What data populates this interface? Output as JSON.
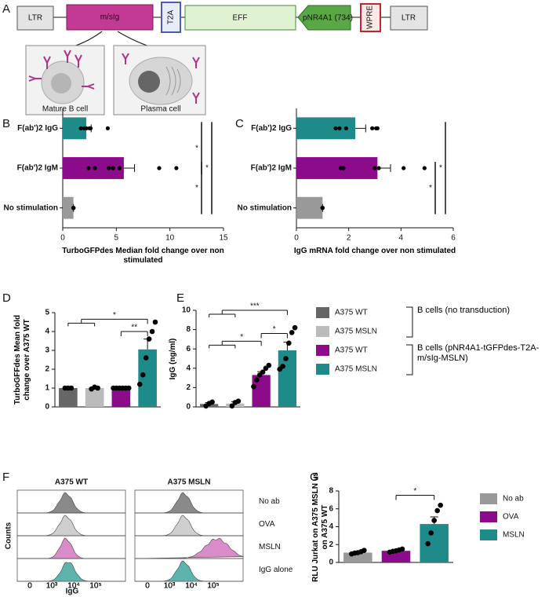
{
  "panels": [
    "A",
    "B",
    "C",
    "D",
    "E",
    "F",
    "G"
  ],
  "construct": {
    "elements": [
      "LTR",
      "m/sIg",
      "T2A",
      "EFF",
      "pNR4A1 (734)",
      "WPRE",
      "LTR"
    ],
    "cells": [
      "Mature B cell",
      "Plasma cell"
    ]
  },
  "chart_data": [
    {
      "type": "hbar",
      "categories": [
        "F(ab')2 IgG",
        "F(ab')2 IgM",
        "No stimulation"
      ],
      "values": [
        2.2,
        5.7,
        1.0
      ],
      "errors": [
        0.45,
        1.0,
        0
      ],
      "points": [
        [
          1.7,
          2.0,
          2.2,
          2.5,
          2.6,
          4.2
        ],
        [
          2.4,
          3.0,
          4.3,
          4.7,
          5.3,
          9.0,
          10.6
        ],
        [
          1,
          1,
          1,
          1,
          1,
          1
        ]
      ],
      "colors": [
        "#1f8a8a",
        "#8b0b8b",
        "#999999"
      ],
      "xlim": [
        0,
        15
      ],
      "xticks": [
        0,
        5,
        10,
        15
      ],
      "x_label": "TurboGFPdes Median fold change over non stimulated",
      "annotations": [
        "*",
        "*",
        "*"
      ]
    },
    {
      "type": "hbar",
      "categories": [
        "F(ab')2 IgG",
        "F(ab')2 IgM",
        "No stimulation"
      ],
      "values": [
        2.25,
        3.1,
        1.0
      ],
      "errors": [
        0.4,
        0.5,
        0
      ],
      "points": [
        [
          1.5,
          1.65,
          1.9,
          2.9,
          3.05,
          3.1
        ],
        [
          1.7,
          1.8,
          3.0,
          3.15,
          4.1,
          4.9
        ],
        [
          1,
          1,
          1,
          1,
          1,
          1
        ]
      ],
      "colors": [
        "#1f8a8a",
        "#8b0b8b",
        "#999999"
      ],
      "xlim": [
        0,
        6
      ],
      "xticks": [
        0,
        2,
        4,
        6
      ],
      "x_label": "IgG mRNA fold change over non stimulated",
      "annotations": [
        "*",
        "*"
      ]
    },
    {
      "type": "vbar",
      "categories": [
        "A375 WT",
        "A375 MSLN",
        "A375 WT",
        "A375 MSLN"
      ],
      "legend_groups": [
        "B cells (no transduction)",
        "B cells (pNR4A1-tGFPdes-T2A-m/sIg-MSLN)"
      ],
      "values": [
        1.0,
        1.0,
        1.0,
        3.05
      ],
      "errors": [
        0,
        0.03,
        0.01,
        0.55
      ],
      "points": [
        [
          1,
          1,
          1
        ],
        [
          0.95,
          1.05,
          1.0
        ],
        [
          1,
          1,
          1,
          1,
          1,
          1
        ],
        [
          1.2,
          1.7,
          2.6,
          3.6,
          4.0,
          4.5
        ]
      ],
      "colors": [
        "#666666",
        "#bbbbbb",
        "#8b0b8b",
        "#1f8a8a"
      ],
      "ylim": [
        0,
        5
      ],
      "yticks": [
        0,
        1,
        2,
        3,
        4,
        5
      ],
      "y_label": "TurboGFFdes Mean fold change over A375 WT",
      "annotations": [
        "*",
        "**"
      ]
    },
    {
      "type": "vbar",
      "values": [
        0.3,
        0.35,
        3.3,
        5.85
      ],
      "errors": [
        0.15,
        0.2,
        0.35,
        0.85
      ],
      "points": [
        [
          0.1,
          0.35,
          0.5
        ],
        [
          0.1,
          0.45,
          0.6
        ],
        [
          2.1,
          2.8,
          3.3,
          3.6,
          4.0,
          4.3
        ],
        [
          3.9,
          4.2,
          5.0,
          6.6,
          7.7,
          8.2
        ]
      ],
      "colors": [
        "#666666",
        "#bbbbbb",
        "#8b0b8b",
        "#1f8a8a"
      ],
      "ylim": [
        0,
        10
      ],
      "yticks": [
        0,
        2,
        4,
        6,
        8,
        10
      ],
      "y_label": "IgG (ng/ml)",
      "annotations": [
        "***",
        "*",
        "*"
      ]
    },
    {
      "type": "vbar",
      "categories": [
        "No ab",
        "OVA",
        "MSLN"
      ],
      "values": [
        1.1,
        1.3,
        4.3
      ],
      "errors": [
        0.1,
        0.08,
        0.8
      ],
      "points": [
        [
          0.95,
          1.05,
          1.1,
          1.2,
          1.35
        ],
        [
          1.15,
          1.25,
          1.3,
          1.4,
          1.5
        ],
        [
          2.1,
          3.3,
          4.7,
          5.8,
          6.4
        ]
      ],
      "colors": [
        "#999999",
        "#8b0b8b",
        "#1f8a8a"
      ],
      "ylim": [
        0,
        8
      ],
      "yticks": [
        0,
        2,
        4,
        6,
        8
      ],
      "y_label": "RLU Jurkat on A375 MSLN vs on A375 WT",
      "annotations": [
        "*"
      ]
    }
  ],
  "flow": {
    "columns": [
      "A375 WT",
      "A375 MSLN"
    ],
    "rows": [
      "No ab",
      "OVA",
      "MSLN",
      "IgG alone"
    ],
    "y_label": "Counts",
    "x_label": "IgG",
    "x_ticks": [
      "0",
      "10³",
      "10⁴",
      "10⁵"
    ]
  }
}
